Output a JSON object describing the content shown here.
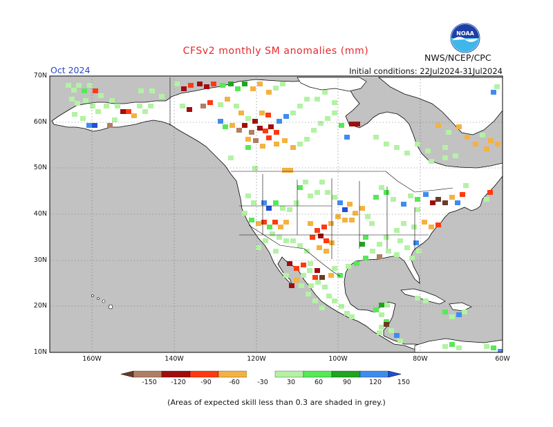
{
  "header": {
    "title": "CFSv2 monthly SM anomalies (mm)",
    "month": "Oct 2024",
    "agency": "NWS/NCEP/CPC",
    "initial_conditions": "Initial conditions: 22Jul2024-31Jul2024",
    "logo_text": "NOAA"
  },
  "axes": {
    "lat_labels": [
      "70N",
      "60N",
      "50N",
      "40N",
      "30N",
      "20N",
      "10N"
    ],
    "lon_labels": [
      "160W",
      "140W",
      "120W",
      "100W",
      "80W",
      "60W"
    ]
  },
  "legend": {
    "labels": [
      "-150",
      "-120",
      "-90",
      "-60",
      "-30",
      "30",
      "60",
      "90",
      "120",
      "150"
    ],
    "colors": [
      "#6b3a2a",
      "#b07e64",
      "#a00d0d",
      "#ff3a10",
      "#f4b240",
      "#ffffff",
      "#b3f2a3",
      "#55e955",
      "#1fa520",
      "#3f8cf0",
      "#1e4fd8"
    ]
  },
  "footnote": "(Areas of expected skill less than 0.3 are shaded in grey.)"
}
